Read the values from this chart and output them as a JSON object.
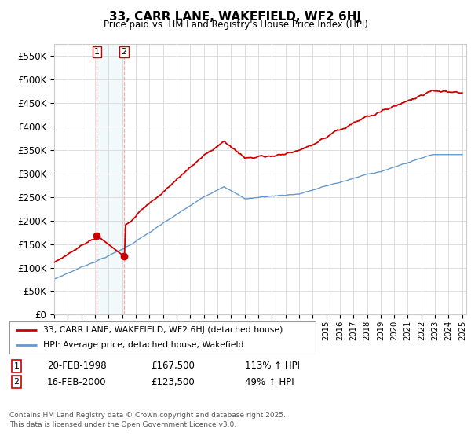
{
  "title": "33, CARR LANE, WAKEFIELD, WF2 6HJ",
  "subtitle": "Price paid vs. HM Land Registry's House Price Index (HPI)",
  "yticks": [
    0,
    50000,
    100000,
    150000,
    200000,
    250000,
    300000,
    350000,
    400000,
    450000,
    500000,
    550000
  ],
  "ylim": [
    0,
    575000
  ],
  "sale1_date": "20-FEB-1998",
  "sale1_price": 167500,
  "sale1_hpi": "113% ↑ HPI",
  "sale1_year": 1998.13,
  "sale2_date": "16-FEB-2000",
  "sale2_price": 123500,
  "sale2_hpi": "49% ↑ HPI",
  "sale2_year": 2000.13,
  "legend_label1": "33, CARR LANE, WAKEFIELD, WF2 6HJ (detached house)",
  "legend_label2": "HPI: Average price, detached house, Wakefield",
  "footer": "Contains HM Land Registry data © Crown copyright and database right 2025.\nThis data is licensed under the Open Government Licence v3.0.",
  "line_color_sale": "#cc0000",
  "line_color_hpi": "#6699cc",
  "background_color": "#ffffff",
  "plot_bg_color": "#ffffff",
  "grid_color": "#dddddd",
  "vline_color": "#ffaaaa",
  "marker_color_sale": "#cc0000"
}
